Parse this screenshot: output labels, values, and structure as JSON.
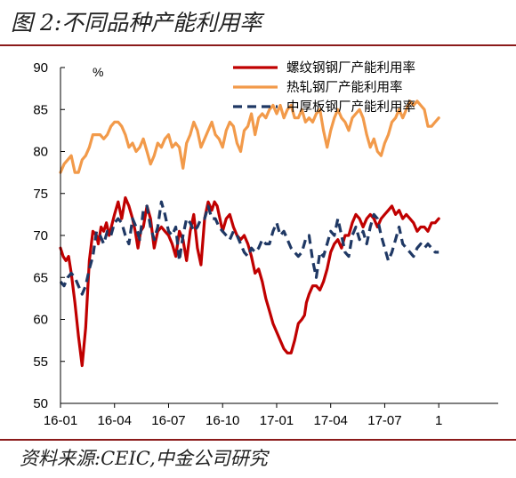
{
  "header": {
    "title": "图 2:不同品种产能利用率"
  },
  "footer": {
    "source": "资料来源:CEIC,中金公司研究"
  },
  "colors": {
    "rule": "#8b1a1a",
    "rebar": "#c00000",
    "hot_rolled": "#f29a4a",
    "plate": "#1f3864"
  },
  "chart_data": {
    "type": "line",
    "unit": "%",
    "ylim": [
      50,
      90
    ],
    "yticks": [
      50,
      55,
      60,
      65,
      70,
      75,
      80,
      85,
      90
    ],
    "xlim": [
      0,
      24
    ],
    "xticks": [
      {
        "label": "16-01",
        "x": 0
      },
      {
        "label": "16-04",
        "x": 3
      },
      {
        "label": "16-07",
        "x": 6
      },
      {
        "label": "16-10",
        "x": 9
      },
      {
        "label": "17-01",
        "x": 12
      },
      {
        "label": "17-04",
        "x": 15
      },
      {
        "label": "17-07",
        "x": 18
      },
      {
        "label": "1",
        "x": 21
      }
    ],
    "grid": false,
    "legend_position": "top-right",
    "series": [
      {
        "name": "螺纹钢钢厂产能利用率",
        "style": "solid",
        "color": "#c00000",
        "x": [
          0,
          0.15,
          0.3,
          0.45,
          0.6,
          0.8,
          1.0,
          1.2,
          1.4,
          1.6,
          1.8,
          2.0,
          2.1,
          2.25,
          2.4,
          2.55,
          2.7,
          3.0,
          3.2,
          3.4,
          3.6,
          3.8,
          4.0,
          4.15,
          4.3,
          4.45,
          4.6,
          4.8,
          5.0,
          5.2,
          5.4,
          5.6,
          5.8,
          6.0,
          6.2,
          6.4,
          6.6,
          6.8,
          7.0,
          7.2,
          7.4,
          7.6,
          7.8,
          8.0,
          8.2,
          8.4,
          8.55,
          8.7,
          8.85,
          9.0,
          9.2,
          9.4,
          9.6,
          9.8,
          10.0,
          10.2,
          10.4,
          10.6,
          10.8,
          11.0,
          11.2,
          11.4,
          11.6,
          11.8,
          12.0,
          12.2,
          12.4,
          12.6,
          12.8,
          13.0,
          13.2,
          13.4,
          13.55,
          13.65,
          13.8,
          14.0,
          14.2,
          14.4,
          14.6,
          14.8,
          15.0,
          15.2,
          15.4,
          15.6,
          15.8,
          16.0,
          16.2,
          16.4,
          16.6,
          16.8,
          17.0,
          17.2,
          17.4,
          17.6,
          17.8,
          18.0,
          18.2,
          18.4,
          18.6,
          18.8,
          19.0,
          19.2,
          19.4,
          19.6,
          19.8,
          20.0,
          20.2,
          20.4,
          20.6,
          20.8,
          21.0
        ],
        "values": [
          68.5,
          67.5,
          67,
          67.5,
          65.5,
          62,
          58,
          54.5,
          59,
          67,
          70.5,
          70,
          69,
          71,
          70.5,
          71.5,
          70,
          72.5,
          74,
          72,
          74.5,
          73.5,
          72,
          70.5,
          68.5,
          70.5,
          71,
          73.5,
          72,
          68.5,
          70.5,
          71,
          70.5,
          70,
          69,
          67.5,
          70.5,
          69.5,
          67,
          70.5,
          72.5,
          68.5,
          66.5,
          72,
          74,
          73,
          74,
          73.5,
          72,
          70.5,
          72,
          72.5,
          71,
          70,
          69.5,
          70,
          69,
          67.5,
          65.5,
          66,
          64.5,
          62.5,
          61,
          59.5,
          58.5,
          57.5,
          56.5,
          56,
          56,
          57.5,
          59.5,
          60,
          60.5,
          62,
          63,
          64,
          64,
          63.5,
          64.5,
          66,
          68,
          69,
          69.5,
          68.5,
          70,
          70,
          71.5,
          72.5,
          72,
          71,
          72,
          72.5,
          72,
          71,
          72,
          72.5,
          73,
          73.5,
          72.5,
          73,
          72,
          72.5,
          72,
          71.5,
          70.5,
          71,
          71,
          70.5,
          71.5,
          71.5,
          72
        ]
      },
      {
        "name": "热轧钢厂产能利用率",
        "style": "solid",
        "color": "#f29a4a",
        "x": [
          0,
          0.2,
          0.4,
          0.6,
          0.8,
          1.0,
          1.2,
          1.4,
          1.6,
          1.8,
          2.0,
          2.2,
          2.4,
          2.6,
          2.8,
          3.0,
          3.2,
          3.4,
          3.6,
          3.8,
          4.0,
          4.2,
          4.4,
          4.6,
          4.8,
          5.0,
          5.2,
          5.4,
          5.6,
          5.8,
          6.0,
          6.2,
          6.4,
          6.6,
          6.8,
          7.0,
          7.2,
          7.4,
          7.6,
          7.8,
          8.0,
          8.2,
          8.4,
          8.6,
          8.8,
          9.0,
          9.2,
          9.4,
          9.6,
          9.8,
          10.0,
          10.2,
          10.4,
          10.6,
          10.8,
          11.0,
          11.2,
          11.4,
          11.6,
          11.8,
          12.0,
          12.2,
          12.4,
          12.6,
          12.8,
          13.0,
          13.2,
          13.4,
          13.6,
          13.8,
          14.0,
          14.2,
          14.4,
          14.6,
          14.8,
          15.0,
          15.2,
          15.4,
          15.6,
          15.8,
          16.0,
          16.2,
          16.4,
          16.6,
          16.8,
          17.0,
          17.2,
          17.4,
          17.6,
          17.8,
          18.0,
          18.2,
          18.4,
          18.6,
          18.8,
          19.0,
          19.2,
          19.4,
          19.6,
          19.8,
          20.0,
          20.2,
          20.4,
          20.6,
          20.8,
          21.0
        ],
        "values": [
          77.5,
          78.5,
          79,
          79.5,
          77.5,
          77.5,
          79,
          79.5,
          80.5,
          82,
          82,
          82,
          81.5,
          82,
          83,
          83.5,
          83.5,
          83,
          82,
          80.5,
          81,
          80,
          80.5,
          81.5,
          80,
          78.5,
          79.5,
          81,
          80.5,
          81.5,
          82,
          80.5,
          81,
          80.5,
          78,
          81,
          82,
          83.5,
          82.5,
          80.5,
          81.5,
          82.5,
          83.5,
          82,
          81.5,
          80.5,
          82.5,
          83.5,
          83,
          81,
          80,
          82.5,
          83,
          84.5,
          82,
          84,
          84.5,
          84,
          85,
          85.5,
          84.5,
          85.5,
          84,
          85,
          85.5,
          84,
          84,
          85,
          83.5,
          84,
          83.5,
          84.5,
          85,
          82.5,
          80.5,
          82.5,
          84,
          85,
          84,
          83.5,
          82.5,
          84,
          84.5,
          85,
          84,
          82,
          80.5,
          81.5,
          80,
          79.5,
          81,
          82,
          83.5,
          84,
          85,
          84,
          85,
          86,
          85.5,
          86,
          85.5,
          85,
          83,
          83,
          83.5,
          84
        ]
      },
      {
        "name": "中厚板钢厂产能利用率",
        "style": "dashed",
        "color": "#1f3864",
        "x": [
          0,
          0.2,
          0.4,
          0.6,
          0.8,
          1.0,
          1.2,
          1.4,
          1.6,
          1.8,
          2.0,
          2.2,
          2.4,
          2.6,
          2.8,
          3.0,
          3.2,
          3.4,
          3.6,
          3.8,
          4.0,
          4.2,
          4.4,
          4.6,
          4.8,
          5.0,
          5.2,
          5.4,
          5.6,
          5.8,
          6.0,
          6.2,
          6.4,
          6.6,
          6.8,
          7.0,
          7.2,
          7.4,
          7.6,
          7.8,
          8.0,
          8.2,
          8.4,
          8.6,
          8.8,
          9.0,
          9.2,
          9.4,
          9.6,
          9.8,
          10.0,
          10.2,
          10.4,
          10.6,
          10.8,
          11.0,
          11.2,
          11.4,
          11.6,
          11.8,
          12.0,
          12.2,
          12.4,
          12.6,
          12.8,
          13.0,
          13.2,
          13.4,
          13.6,
          13.8,
          14.0,
          14.2,
          14.4,
          14.6,
          14.8,
          15.0,
          15.2,
          15.4,
          15.6,
          15.8,
          16.0,
          16.2,
          16.4,
          16.6,
          16.8,
          17.0,
          17.2,
          17.4,
          17.6,
          17.8,
          18.0,
          18.2,
          18.4,
          18.6,
          18.8,
          19.0,
          19.2,
          19.4,
          19.6,
          19.8,
          20.0,
          20.2,
          20.4,
          20.6,
          20.8,
          21.0
        ],
        "values": [
          64.5,
          64,
          65,
          65.5,
          65,
          64,
          63,
          64,
          66,
          67.5,
          70.5,
          70,
          69,
          70.5,
          70,
          71.5,
          72,
          71.5,
          70,
          69,
          72,
          71,
          69.5,
          73,
          73.5,
          71,
          69.5,
          71,
          74,
          72.5,
          70.5,
          70,
          71,
          67,
          70,
          72,
          71.5,
          70.5,
          71,
          72,
          72,
          73.5,
          72,
          72,
          71,
          70.5,
          70,
          69.5,
          70.5,
          70,
          69,
          68,
          67.5,
          68.5,
          68,
          68.5,
          69.5,
          69,
          69,
          70.5,
          71.5,
          70,
          70.5,
          69.5,
          68.5,
          68,
          67.5,
          68,
          69.5,
          70,
          67,
          65,
          68,
          67.5,
          69,
          70.5,
          70,
          72,
          70,
          68,
          67.5,
          70,
          71,
          69.5,
          70.5,
          69,
          71,
          72.5,
          72,
          70,
          68.5,
          67,
          68,
          69.5,
          71,
          69,
          68.5,
          68,
          67.5,
          68.5,
          69,
          68.5,
          69,
          68.5,
          68,
          68
        ]
      }
    ]
  }
}
